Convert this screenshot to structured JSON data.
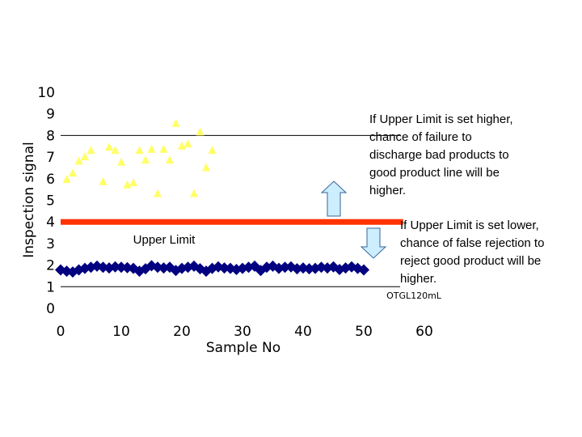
{
  "chart_data": {
    "type": "scatter",
    "xlabel": "Sample No",
    "ylabel": "Inspection signal",
    "xlim": [
      0,
      60
    ],
    "ylim": [
      0,
      10
    ],
    "x_ticks": [
      0,
      10,
      20,
      30,
      40,
      50,
      60
    ],
    "y_ticks": [
      0,
      1,
      2,
      3,
      4,
      5,
      6,
      7,
      8,
      9,
      10
    ],
    "grid": "horizontal lines at 1 and 8",
    "annotation_upper_limit": "Upper Limit",
    "upper_limit_value": 4,
    "sample_label": "OTGL120mL",
    "series": [
      {
        "color": "#ffff66",
        "marker": "triangle",
        "points": [
          [
            1,
            5.95
          ],
          [
            2,
            6.25
          ],
          [
            3,
            6.8
          ],
          [
            4,
            7.0
          ],
          [
            5,
            7.3
          ],
          [
            7,
            5.85
          ],
          [
            8,
            7.45
          ],
          [
            9,
            7.3
          ],
          [
            10,
            6.75
          ],
          [
            11,
            5.7
          ],
          [
            12,
            5.8
          ],
          [
            13,
            7.3
          ],
          [
            14,
            6.85
          ],
          [
            15,
            7.35
          ],
          [
            16,
            5.3
          ],
          [
            17,
            7.35
          ],
          [
            18,
            6.85
          ],
          [
            19,
            8.55
          ],
          [
            20,
            7.5
          ],
          [
            21,
            7.6
          ],
          [
            22,
            5.3
          ],
          [
            23,
            8.15
          ],
          [
            24,
            6.5
          ],
          [
            25,
            7.3
          ]
        ]
      },
      {
        "color": "#000080",
        "marker": "diamond",
        "points": [
          [
            0,
            1.78
          ],
          [
            1,
            1.72
          ],
          [
            2,
            1.68
          ],
          [
            3,
            1.78
          ],
          [
            4,
            1.85
          ],
          [
            5,
            1.9
          ],
          [
            6,
            1.95
          ],
          [
            7,
            1.9
          ],
          [
            8,
            1.87
          ],
          [
            9,
            1.92
          ],
          [
            10,
            1.9
          ],
          [
            11,
            1.88
          ],
          [
            12,
            1.85
          ],
          [
            13,
            1.72
          ],
          [
            14,
            1.83
          ],
          [
            15,
            1.97
          ],
          [
            16,
            1.9
          ],
          [
            17,
            1.87
          ],
          [
            18,
            1.9
          ],
          [
            19,
            1.75
          ],
          [
            20,
            1.85
          ],
          [
            21,
            1.9
          ],
          [
            22,
            1.95
          ],
          [
            23,
            1.83
          ],
          [
            24,
            1.72
          ],
          [
            25,
            1.85
          ],
          [
            26,
            1.92
          ],
          [
            27,
            1.87
          ],
          [
            28,
            1.85
          ],
          [
            29,
            1.8
          ],
          [
            30,
            1.85
          ],
          [
            31,
            1.9
          ],
          [
            32,
            1.95
          ],
          [
            33,
            1.75
          ],
          [
            34,
            1.9
          ],
          [
            35,
            1.95
          ],
          [
            36,
            1.85
          ],
          [
            37,
            1.9
          ],
          [
            38,
            1.92
          ],
          [
            39,
            1.83
          ],
          [
            40,
            1.87
          ],
          [
            41,
            1.83
          ],
          [
            42,
            1.85
          ],
          [
            43,
            1.9
          ],
          [
            44,
            1.87
          ],
          [
            45,
            1.92
          ],
          [
            46,
            1.8
          ],
          [
            47,
            1.87
          ],
          [
            48,
            1.92
          ],
          [
            49,
            1.85
          ],
          [
            50,
            1.78
          ]
        ]
      }
    ]
  },
  "callouts": {
    "higher": "If Upper Limit is set higher,\nchance of failure to\ndischarge bad products to\ngood product line will be\nhigher.",
    "lower": "If Upper Limit is set lower,\nchance of false rejection to\nreject good product will be\nhigher."
  },
  "colors": {
    "limit_line": "#ff3300",
    "arrow_fill": "#cceeff",
    "arrow_stroke": "#336699"
  }
}
